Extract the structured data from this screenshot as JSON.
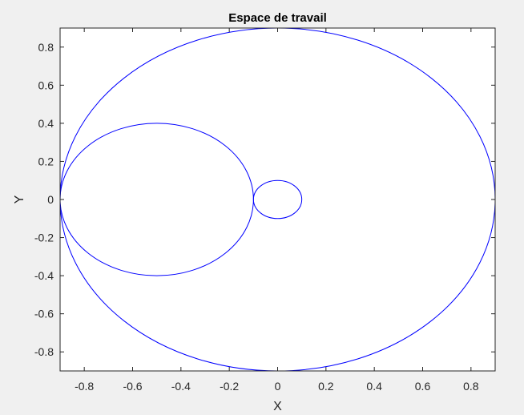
{
  "chart_data": {
    "type": "line",
    "title": "Espace de travail",
    "xlabel": "X",
    "ylabel": "Y",
    "xlim": [
      -0.9,
      0.9
    ],
    "ylim": [
      -0.9,
      0.9
    ],
    "xticks": [
      -0.8,
      -0.6,
      -0.4,
      -0.2,
      0,
      0.2,
      0.4,
      0.6,
      0.8
    ],
    "xtick_labels": [
      "-0.8",
      "-0.6",
      "-0.4",
      "-0.2",
      "0",
      "0.2",
      "0.4",
      "0.6",
      "0.8"
    ],
    "yticks": [
      -0.8,
      -0.6,
      -0.4,
      -0.2,
      0,
      0.2,
      0.4,
      0.6,
      0.8
    ],
    "ytick_labels": [
      "-0.8",
      "-0.6",
      "-0.4",
      "-0.2",
      "0",
      "0.2",
      "0.4",
      "0.6",
      "0.8"
    ],
    "grid": false,
    "legend": "none",
    "series": [
      {
        "shape": "circle",
        "center": [
          0,
          0
        ],
        "radius": 0.9,
        "color": "#0000ff"
      },
      {
        "shape": "circle",
        "center": [
          -0.5,
          0
        ],
        "radius": 0.4,
        "color": "#0000ff"
      },
      {
        "shape": "circle",
        "center": [
          0,
          0
        ],
        "radius": 0.1,
        "color": "#0000ff"
      }
    ]
  }
}
